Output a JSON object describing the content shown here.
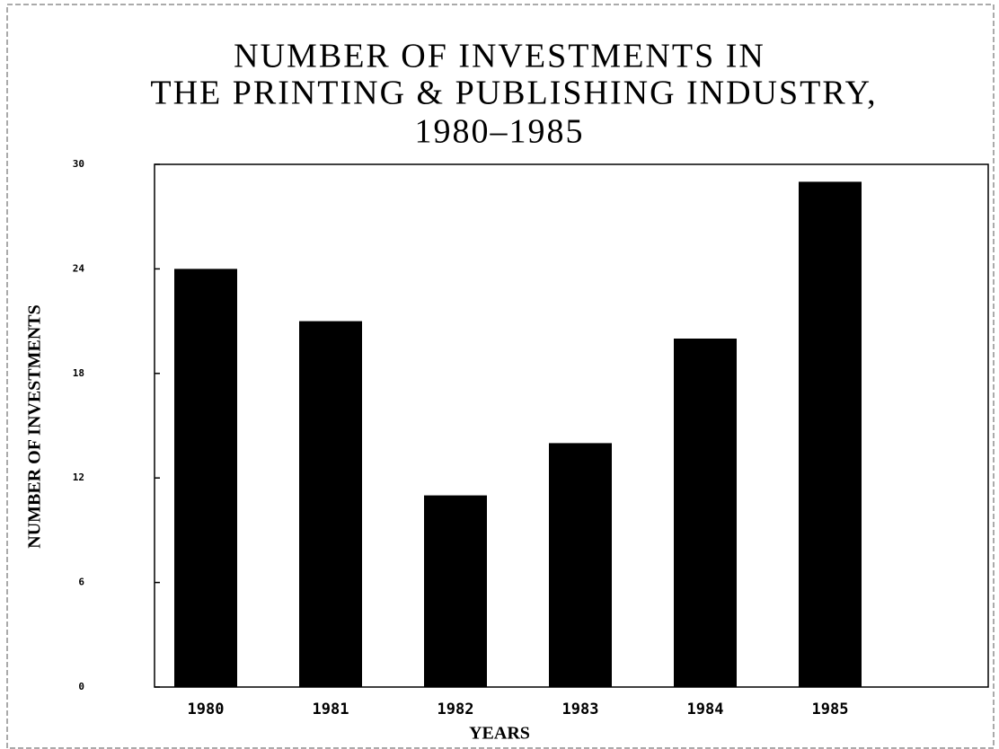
{
  "chart_data": {
    "type": "bar",
    "title": [
      "NUMBER OF INVESTMENTS IN",
      "THE PRINTING & PUBLISHING INDUSTRY,",
      "1980–1985"
    ],
    "categories": [
      "1980",
      "1981",
      "1982",
      "1983",
      "1984",
      "1985"
    ],
    "values": [
      24,
      21,
      11,
      14,
      20,
      29
    ],
    "color": "#000000",
    "xlabel": "YEARS",
    "ylabel": "NUMBER OF INVESTMENTS",
    "ylim": [
      0,
      30
    ],
    "yticks": [
      0,
      6,
      12,
      18,
      24,
      30
    ],
    "grid": false
  }
}
